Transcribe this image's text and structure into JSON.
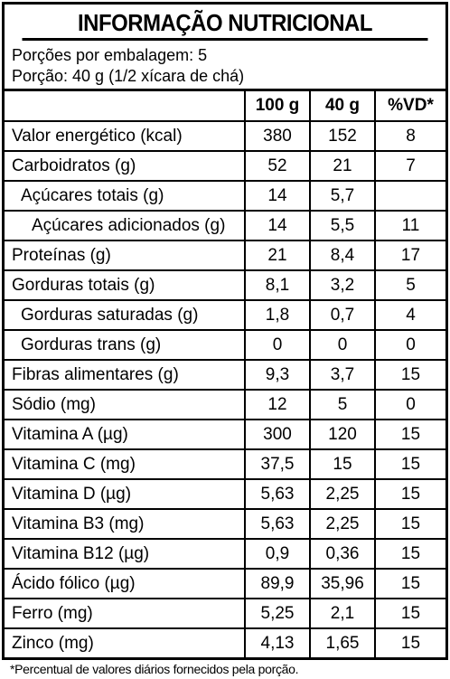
{
  "title": "INFORMAÇÃO NUTRICIONAL",
  "servings_per_package": "Porções por embalagem: 5",
  "serving_size": "Porção: 40 g (1/2 xícara de chá)",
  "columns": [
    "100 g",
    "40 g",
    "%VD*"
  ],
  "rows": [
    {
      "name": "Valor energético (kcal)",
      "v100": "380",
      "portion": "152",
      "vd": "8"
    },
    {
      "name": "Carboidratos (g)",
      "v100": "52",
      "portion": "21",
      "vd": "7"
    },
    {
      "name": "Açúcares totais (g)",
      "v100": "14",
      "portion": "5,7",
      "vd": ""
    },
    {
      "name": "Açúcares adicionados (g)",
      "v100": "14",
      "portion": "5,5",
      "vd": "11"
    },
    {
      "name": "Proteínas (g)",
      "v100": "21",
      "portion": "8,4",
      "vd": "17"
    },
    {
      "name": "Gorduras totais (g)",
      "v100": "8,1",
      "portion": "3,2",
      "vd": "5"
    },
    {
      "name": "Gorduras saturadas (g)",
      "v100": "1,8",
      "portion": "0,7",
      "vd": "4"
    },
    {
      "name": "Gorduras trans (g)",
      "v100": "0",
      "portion": "0",
      "vd": "0"
    },
    {
      "name": "Fibras alimentares (g)",
      "v100": "9,3",
      "portion": "3,7",
      "vd": "15"
    },
    {
      "name": "Sódio (mg)",
      "v100": "12",
      "portion": "5",
      "vd": "0"
    },
    {
      "name": "Vitamina A (µg)",
      "v100": "300",
      "portion": "120",
      "vd": "15"
    },
    {
      "name": "Vitamina C (mg)",
      "v100": "37,5",
      "portion": "15",
      "vd": "15"
    },
    {
      "name": "Vitamina D (µg)",
      "v100": "5,63",
      "portion": "2,25",
      "vd": "15"
    },
    {
      "name": "Vitamina B3 (mg)",
      "v100": "5,63",
      "portion": "2,25",
      "vd": "15"
    },
    {
      "name": "Vitamina B12 (µg)",
      "v100": "0,9",
      "portion": "0,36",
      "vd": "15"
    },
    {
      "name": "Ácido fólico (µg)",
      "v100": "89,9",
      "portion": "35,96",
      "vd": "15"
    },
    {
      "name": "Ferro (mg)",
      "v100": "5,25",
      "portion": "2,1",
      "vd": "15"
    },
    {
      "name": "Zinco (mg)",
      "v100": "4,13",
      "portion": "1,65",
      "vd": "15"
    }
  ],
  "footnote": "*Percentual de valores diários fornecidos pela porção."
}
